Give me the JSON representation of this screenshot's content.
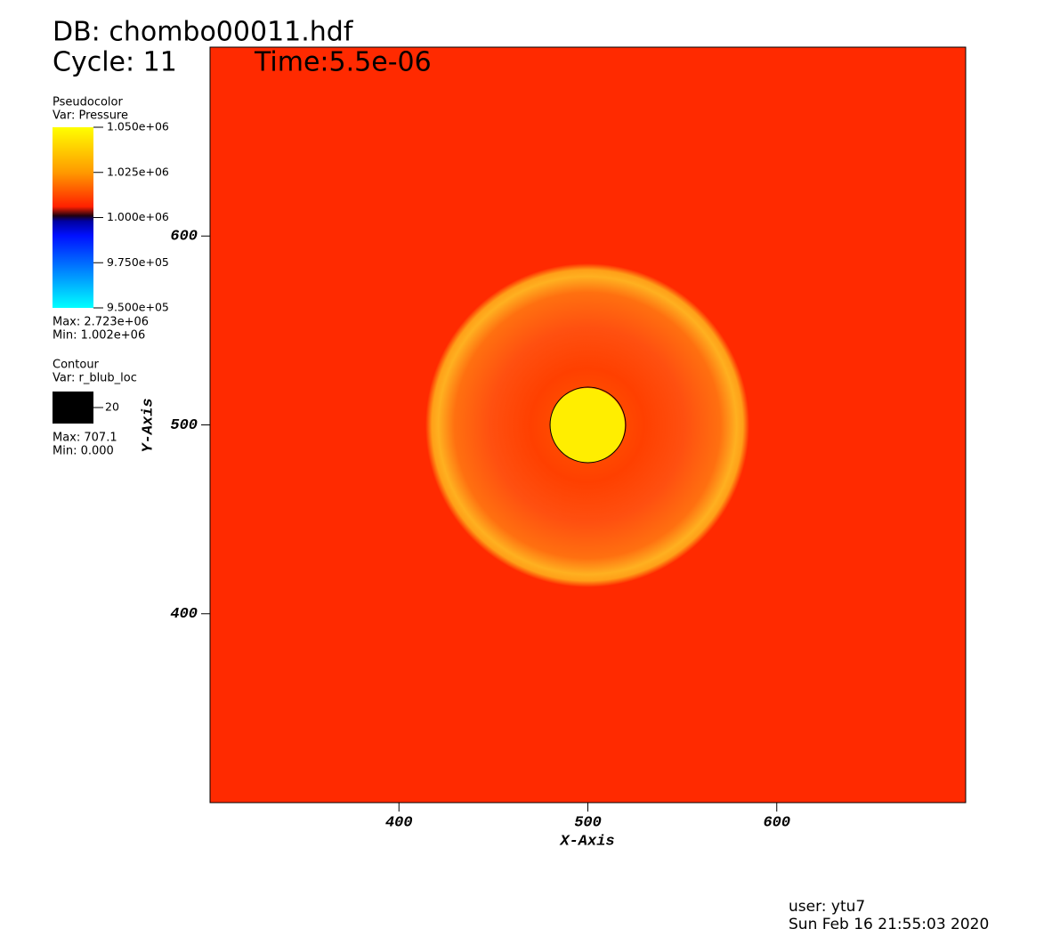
{
  "chart_data": {
    "type": "pseudocolor",
    "title": "DB: chombo00011.hdf",
    "cycle_label": "Cycle: 11",
    "time_label": "Time:5.5e-06",
    "xlabel": "X-Axis",
    "ylabel": "Y-Axis",
    "xlim": [
      300,
      700
    ],
    "ylim": [
      300,
      700
    ],
    "xticks": [
      400,
      500,
      600
    ],
    "yticks": [
      400,
      500,
      600
    ],
    "legends": [
      {
        "plot": "Pseudocolor",
        "var": "Var: Pressure",
        "range": [
          950000,
          1050000
        ],
        "ticks": [
          {
            "value": 1050000,
            "label": "1.050e+06"
          },
          {
            "value": 1025000,
            "label": "1.025e+06"
          },
          {
            "value": 1000000,
            "label": "1.000e+06"
          },
          {
            "value": 975000,
            "label": "9.750e+05"
          },
          {
            "value": 950000,
            "label": "9.500e+05"
          }
        ],
        "max": "Max: 2.723e+06",
        "min": "Min:  1.002e+06"
      },
      {
        "plot": "Contour",
        "var": "Var: r_blub_loc",
        "levels": [
          20
        ],
        "color": "#000000",
        "max": "Max: 707.1",
        "min": "Min: 0.000"
      }
    ],
    "user": "user: ytu7",
    "date": "Sun Feb 16 21:55:03 2020"
  }
}
